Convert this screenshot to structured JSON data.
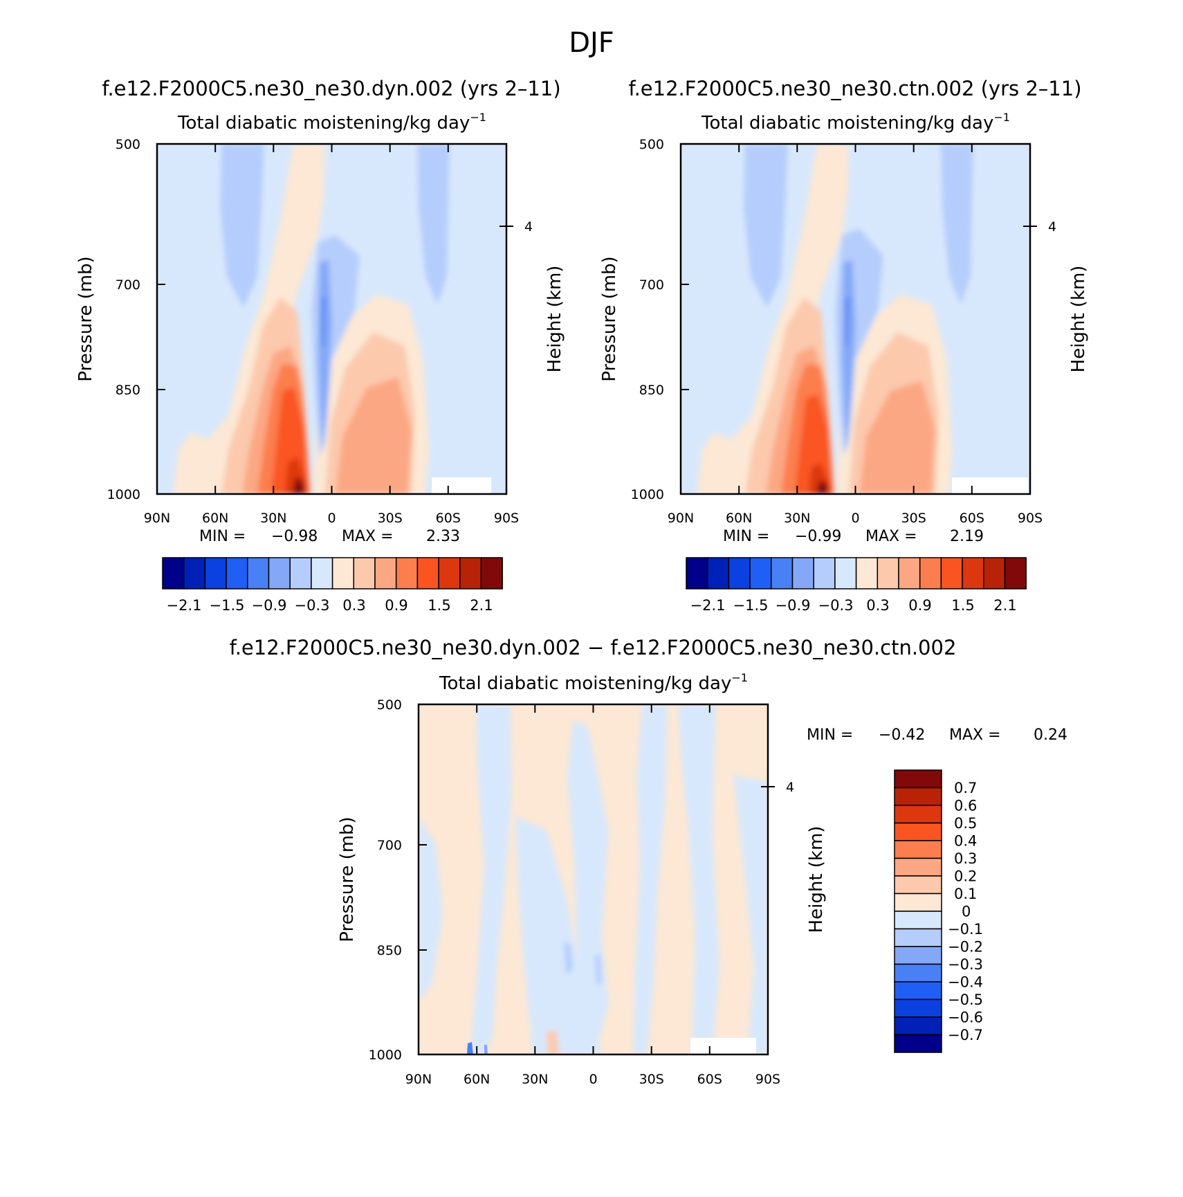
{
  "figure_title": "DJF",
  "chart_data": [
    {
      "type": "contour",
      "id": "panel1",
      "case_title": "f.e12.F2000C5.ne30_ne30.dyn.002 (yrs 2–11)",
      "variable_title": "Total diabatic moistening/kg day",
      "variable_units_sup": "−1",
      "ylabel": "Pressure (mb)",
      "y2label": "Height (km)",
      "x_ticks": [
        "90N",
        "60N",
        "30N",
        "0",
        "30S",
        "60S",
        "90S"
      ],
      "y_ticks": [
        "500",
        "700",
        "850",
        "1000"
      ],
      "y2_ticks": [
        "4"
      ],
      "xlim": [
        90,
        -90
      ],
      "ylim_mb": [
        1000,
        500
      ],
      "min_label": "MIN =",
      "min_value": "−0.98",
      "max_label": "MAX =",
      "max_value": "2.33",
      "colorbar_labels": [
        "−2.1",
        "−1.5",
        "−0.9",
        "−0.3",
        "0.3",
        "0.9",
        "1.5",
        "2.1"
      ],
      "contour_levels": [
        -2.1,
        -1.8,
        -1.5,
        -1.2,
        -0.9,
        -0.6,
        -0.3,
        0,
        0.3,
        0.6,
        0.9,
        1.2,
        1.5,
        1.8,
        2.1
      ]
    },
    {
      "type": "contour",
      "id": "panel2",
      "case_title": "f.e12.F2000C5.ne30_ne30.ctn.002 (yrs 2–11)",
      "variable_title": "Total diabatic moistening/kg day",
      "variable_units_sup": "−1",
      "ylabel": "Pressure (mb)",
      "y2label": "Height (km)",
      "x_ticks": [
        "90N",
        "60N",
        "30N",
        "0",
        "30S",
        "60S",
        "90S"
      ],
      "y_ticks": [
        "500",
        "700",
        "850",
        "1000"
      ],
      "y2_ticks": [
        "4"
      ],
      "xlim": [
        90,
        -90
      ],
      "ylim_mb": [
        1000,
        500
      ],
      "min_label": "MIN =",
      "min_value": "−0.99",
      "max_label": "MAX =",
      "max_value": "2.19",
      "colorbar_labels": [
        "−2.1",
        "−1.5",
        "−0.9",
        "−0.3",
        "0.3",
        "0.9",
        "1.5",
        "2.1"
      ],
      "contour_levels": [
        -2.1,
        -1.8,
        -1.5,
        -1.2,
        -0.9,
        -0.6,
        -0.3,
        0,
        0.3,
        0.6,
        0.9,
        1.2,
        1.5,
        1.8,
        2.1
      ]
    },
    {
      "type": "contour",
      "id": "panel3",
      "case_title": "f.e12.F2000C5.ne30_ne30.dyn.002 − f.e12.F2000C5.ne30_ne30.ctn.002",
      "variable_title": "Total diabatic moistening/kg day",
      "variable_units_sup": "−1",
      "ylabel": "Pressure (mb)",
      "y2label": "Height (km)",
      "x_ticks": [
        "90N",
        "60N",
        "30N",
        "0",
        "30S",
        "60S",
        "90S"
      ],
      "y_ticks": [
        "500",
        "700",
        "850",
        "1000"
      ],
      "y2_ticks": [
        "4"
      ],
      "xlim": [
        90,
        -90
      ],
      "ylim_mb": [
        1000,
        500
      ],
      "min_label": "MIN =",
      "min_value": "−0.42",
      "max_label": "MAX =",
      "max_value": "0.24",
      "colorbar_labels": [
        "0.7",
        "0.6",
        "0.5",
        "0.4",
        "0.3",
        "0.2",
        "0.1",
        "0",
        "−0.1",
        "−0.2",
        "−0.3",
        "−0.4",
        "−0.5",
        "−0.6",
        "−0.7"
      ],
      "contour_levels": [
        -0.7,
        -0.6,
        -0.5,
        -0.4,
        -0.3,
        -0.2,
        -0.1,
        0,
        0.1,
        0.2,
        0.3,
        0.4,
        0.5,
        0.6,
        0.7
      ]
    }
  ],
  "colors": {
    "palette_16": [
      "#00008a",
      "#0021b8",
      "#0b41e0",
      "#1f5ff5",
      "#4980f5",
      "#84a8f7",
      "#b5cdfc",
      "#d8e8fc",
      "#fce8d4",
      "#fcc9ad",
      "#fca783",
      "#fc7e4e",
      "#fa5520",
      "#dd3710",
      "#b82307",
      "#820909"
    ],
    "axis": "#000000",
    "background": "#ffffff"
  }
}
